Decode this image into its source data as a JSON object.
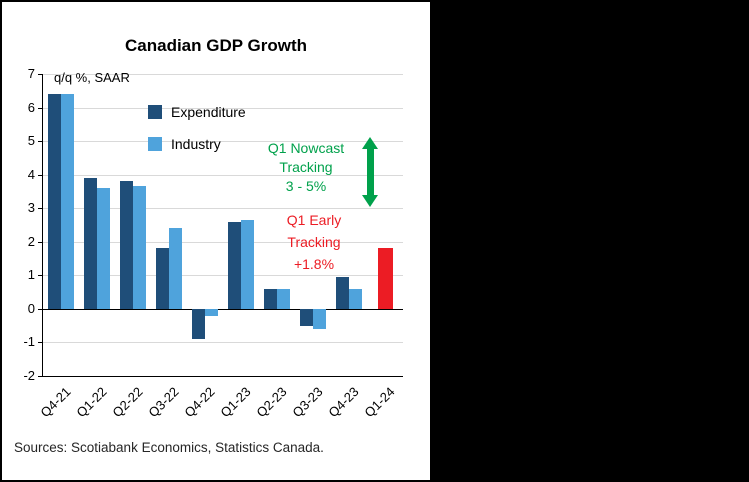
{
  "chart_data": {
    "type": "bar",
    "title": "Canadian GDP Growth",
    "axis_note": "q/q %, SAAR",
    "categories": [
      "Q4-21",
      "Q1-22",
      "Q2-22",
      "Q3-22",
      "Q4-22",
      "Q1-23",
      "Q2-23",
      "Q3-23",
      "Q4-23",
      "Q1-24"
    ],
    "series": [
      {
        "name": "Expenditure",
        "color": "#1F4E79",
        "values": [
          6.4,
          3.9,
          3.8,
          1.8,
          -0.9,
          2.6,
          0.6,
          -0.5,
          0.95,
          null
        ]
      },
      {
        "name": "Industry",
        "color": "#4FA3DC",
        "values": [
          6.4,
          3.6,
          3.65,
          2.4,
          -0.2,
          2.65,
          0.6,
          -0.6,
          0.6,
          null
        ]
      }
    ],
    "highlight_bar": {
      "category": "Q1-24",
      "value": 1.8,
      "color": "#EC1C24"
    },
    "ylim": [
      -2,
      7
    ],
    "yticks": [
      -2,
      -1,
      0,
      1,
      2,
      3,
      4,
      5,
      6,
      7
    ],
    "grid": true,
    "legend_position": "upper-left-inside",
    "annotations": [
      {
        "id": "nowcast",
        "text_lines": [
          "Q1 Nowcast",
          "Tracking",
          "3 - 5%"
        ],
        "color": "#00A14B",
        "arrow": "vertical-double"
      },
      {
        "id": "early-tracking",
        "text_lines": [
          "Q1 Early",
          "Tracking",
          "+1.8%"
        ],
        "color": "#EC1C24"
      }
    ],
    "source": "Sources: Scotiabank Economics, Statistics Canada."
  }
}
